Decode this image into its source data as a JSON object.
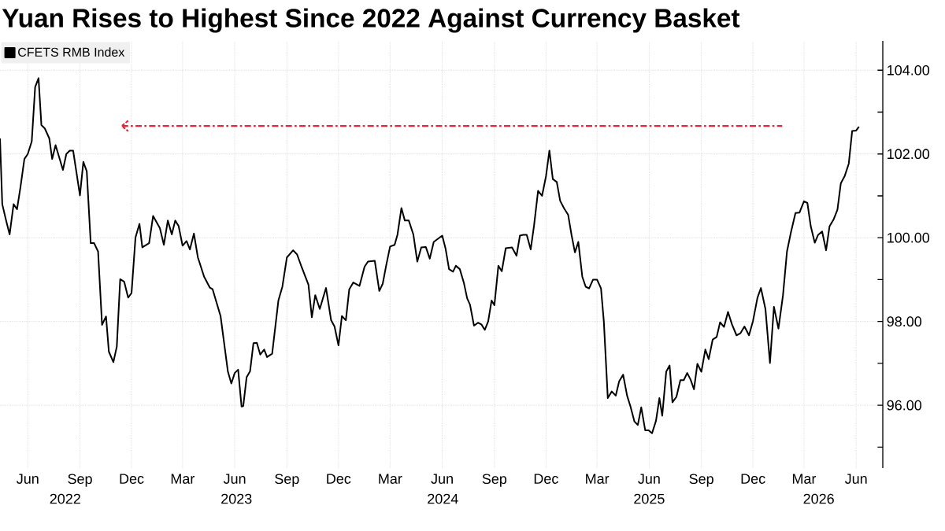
{
  "chart_data": {
    "type": "line",
    "title": "Yuan Rises to Highest Since 2022 Against Currency Basket",
    "x": [
      "2022-04-13",
      "2022-04-17",
      "2022-04-24",
      "2022-04-30",
      "2022-05-07",
      "2022-05-13",
      "2022-05-19",
      "2022-05-26",
      "2022-06-01",
      "2022-06-08",
      "2022-06-14",
      "2022-06-20",
      "2022-06-25",
      "2022-07-01",
      "2022-07-09",
      "2022-07-14",
      "2022-07-20",
      "2022-08-02",
      "2022-08-08",
      "2022-08-14",
      "2022-08-20",
      "2022-09-01",
      "2022-09-07",
      "2022-09-13",
      "2022-09-20",
      "2022-09-26",
      "2022-10-03",
      "2022-10-10",
      "2022-10-17",
      "2022-10-22",
      "2022-10-30",
      "2022-11-05",
      "2022-11-11",
      "2022-11-18",
      "2022-11-25",
      "2022-12-01",
      "2022-12-08",
      "2022-12-15",
      "2022-12-20",
      "2023-01-01",
      "2023-01-08",
      "2023-01-20",
      "2023-01-27",
      "2023-02-03",
      "2023-02-10",
      "2023-02-16",
      "2023-02-22",
      "2023-03-01",
      "2023-03-08",
      "2023-03-14",
      "2023-03-21",
      "2023-03-28",
      "2023-04-08",
      "2023-04-18",
      "2023-04-23",
      "2023-05-07",
      "2023-05-20",
      "2023-05-26",
      "2023-06-01",
      "2023-06-07",
      "2023-06-13",
      "2023-06-16",
      "2023-06-22",
      "2023-06-28",
      "2023-07-04",
      "2023-07-10",
      "2023-07-16",
      "2023-07-23",
      "2023-07-28",
      "2023-08-06",
      "2023-08-17",
      "2023-08-24",
      "2023-09-01",
      "2023-09-12",
      "2023-09-19",
      "2023-09-27",
      "2023-10-09",
      "2023-10-15",
      "2023-10-21",
      "2023-10-29",
      "2023-11-09",
      "2023-11-18",
      "2023-11-24",
      "2023-12-01",
      "2023-12-07",
      "2023-12-14",
      "2023-12-20",
      "2023-12-27",
      "2024-01-07",
      "2024-01-16",
      "2024-01-22",
      "2024-02-03",
      "2024-02-11",
      "2024-02-17",
      "2024-02-23",
      "2024-03-01",
      "2024-03-09",
      "2024-03-14",
      "2024-03-21",
      "2024-03-27",
      "2024-04-03",
      "2024-04-11",
      "2024-04-18",
      "2024-04-25",
      "2024-05-03",
      "2024-05-10",
      "2024-05-17",
      "2024-06-01",
      "2024-06-07",
      "2024-06-13",
      "2024-06-20",
      "2024-06-25",
      "2024-07-02",
      "2024-07-09",
      "2024-07-15",
      "2024-07-20",
      "2024-07-27",
      "2024-08-03",
      "2024-08-09",
      "2024-08-15",
      "2024-08-21",
      "2024-08-27",
      "2024-09-01",
      "2024-09-08",
      "2024-09-14",
      "2024-09-21",
      "2024-10-02",
      "2024-10-10",
      "2024-10-16",
      "2024-10-22",
      "2024-10-28",
      "2024-11-04",
      "2024-11-10",
      "2024-11-17",
      "2024-11-24",
      "2024-12-01",
      "2024-12-07",
      "2024-12-13",
      "2024-12-20",
      "2024-12-26",
      "2025-01-02",
      "2025-01-09",
      "2025-01-15",
      "2025-01-21",
      "2025-01-27",
      "2025-02-03",
      "2025-02-09",
      "2025-02-15",
      "2025-02-22",
      "2025-03-01",
      "2025-03-08",
      "2025-03-13",
      "2025-03-20",
      "2025-03-27",
      "2025-04-03",
      "2025-04-09",
      "2025-04-16",
      "2025-04-23",
      "2025-04-29",
      "2025-05-06",
      "2025-05-12",
      "2025-05-18",
      "2025-05-25",
      "2025-05-31",
      "2025-06-06",
      "2025-06-13",
      "2025-06-19",
      "2025-06-24",
      "2025-07-01",
      "2025-07-07",
      "2025-07-12",
      "2025-07-19",
      "2025-07-26",
      "2025-08-01",
      "2025-08-07",
      "2025-08-13",
      "2025-08-19",
      "2025-08-25",
      "2025-09-01",
      "2025-09-08",
      "2025-09-14",
      "2025-09-21",
      "2025-09-28",
      "2025-10-04",
      "2025-10-11",
      "2025-10-18",
      "2025-10-25",
      "2025-11-02",
      "2025-11-09",
      "2025-11-16",
      "2025-11-24",
      "2025-12-01",
      "2025-12-09",
      "2025-12-15",
      "2025-12-23",
      "2025-12-31",
      "2026-01-07",
      "2026-01-15",
      "2026-01-23",
      "2026-01-30",
      "2026-02-06",
      "2026-02-14",
      "2026-02-21",
      "2026-03-01",
      "2026-03-07",
      "2026-03-13",
      "2026-03-20",
      "2026-03-26",
      "2026-04-02",
      "2026-04-09",
      "2026-04-15",
      "2026-04-22",
      "2026-04-29",
      "2026-05-05",
      "2026-05-12",
      "2026-05-19",
      "2026-05-25",
      "2026-06-01",
      "2026-06-06"
    ],
    "series": [
      {
        "name": "CFETS RMB Index",
        "color": "#000000",
        "values": [
          102.37,
          100.8,
          100.4,
          100.08,
          100.8,
          100.68,
          101.2,
          101.88,
          102.0,
          102.3,
          103.6,
          103.81,
          102.69,
          102.61,
          102.37,
          101.88,
          102.21,
          101.62,
          102.0,
          102.08,
          102.08,
          101.01,
          101.81,
          101.59,
          99.87,
          99.87,
          99.67,
          97.92,
          98.12,
          97.28,
          97.03,
          97.4,
          99.01,
          98.95,
          98.57,
          98.68,
          100.01,
          100.33,
          99.77,
          99.87,
          100.52,
          100.23,
          99.83,
          100.41,
          100.08,
          100.41,
          100.28,
          99.81,
          99.92,
          99.72,
          100.1,
          99.53,
          99.07,
          98.81,
          98.77,
          98.13,
          96.8,
          96.52,
          96.77,
          96.85,
          95.97,
          95.98,
          96.67,
          96.81,
          97.48,
          97.49,
          97.21,
          97.33,
          97.15,
          97.23,
          98.5,
          98.83,
          99.53,
          99.7,
          99.6,
          99.3,
          98.88,
          98.1,
          98.63,
          98.3,
          98.8,
          98.03,
          97.88,
          97.43,
          98.13,
          98.03,
          98.77,
          98.93,
          98.85,
          99.31,
          99.43,
          99.45,
          98.73,
          98.9,
          99.33,
          99.79,
          99.83,
          100.07,
          100.71,
          100.41,
          100.41,
          100.08,
          99.43,
          99.77,
          99.78,
          99.5,
          99.9,
          100.05,
          99.73,
          99.25,
          99.19,
          99.33,
          99.25,
          98.93,
          98.55,
          98.4,
          97.9,
          97.97,
          97.93,
          97.8,
          98.0,
          98.5,
          98.39,
          99.33,
          99.2,
          99.75,
          99.77,
          99.57,
          100.05,
          100.07,
          100.07,
          99.72,
          100.3,
          101.12,
          101.0,
          101.47,
          102.08,
          101.4,
          101.33,
          100.88,
          100.7,
          100.55,
          100.07,
          99.65,
          99.9,
          99.07,
          98.83,
          98.79,
          99.0,
          99.0,
          98.79,
          98.0,
          96.17,
          96.33,
          96.23,
          96.57,
          96.73,
          96.23,
          95.97,
          95.61,
          95.53,
          95.95,
          95.4,
          95.4,
          95.33,
          95.63,
          96.17,
          95.75,
          96.8,
          96.95,
          96.07,
          96.2,
          96.6,
          96.6,
          96.77,
          96.61,
          96.38,
          96.99,
          96.8,
          97.33,
          97.1,
          97.57,
          97.63,
          97.98,
          97.87,
          98.23,
          97.93,
          97.67,
          97.72,
          97.88,
          97.67,
          98.01,
          98.57,
          98.8,
          98.3,
          97.01,
          98.35,
          97.83,
          98.63,
          99.67,
          100.13,
          100.59,
          100.6,
          100.87,
          100.83,
          100.27,
          99.88,
          100.07,
          100.15,
          99.7,
          100.27,
          100.43,
          100.67,
          101.3,
          101.48,
          101.77,
          102.55,
          102.56,
          102.65
        ]
      }
    ],
    "xlim": [
      "2022-04-13",
      "2026-07-18"
    ],
    "xticks": [
      {
        "value": "2022-06-01",
        "label": "Jun"
      },
      {
        "value": "2022-09-01",
        "label": "Sep"
      },
      {
        "value": "2022-12-01",
        "label": "Dec"
      },
      {
        "value": "2023-03-01",
        "label": "Mar"
      },
      {
        "value": "2023-06-01",
        "label": "Jun"
      },
      {
        "value": "2023-09-01",
        "label": "Sep"
      },
      {
        "value": "2023-12-01",
        "label": "Dec"
      },
      {
        "value": "2024-03-01",
        "label": "Mar"
      },
      {
        "value": "2024-06-01",
        "label": "Jun"
      },
      {
        "value": "2024-09-01",
        "label": "Sep"
      },
      {
        "value": "2024-12-01",
        "label": "Dec"
      },
      {
        "value": "2025-03-01",
        "label": "Mar"
      },
      {
        "value": "2025-06-01",
        "label": "Jun"
      },
      {
        "value": "2025-09-01",
        "label": "Sep"
      },
      {
        "value": "2025-12-01",
        "label": "Dec"
      },
      {
        "value": "2026-03-01",
        "label": "Mar"
      },
      {
        "value": "2026-06-01",
        "label": "Jun"
      }
    ],
    "x2lim": [
      "2022-04-13",
      "2026-07-18"
    ],
    "x2ticks": [
      {
        "value": "2022-08-06",
        "label": "2022"
      },
      {
        "value": "2023-06-04",
        "label": "2023"
      },
      {
        "value": "2024-06-02",
        "label": "2024"
      },
      {
        "value": "2025-06-01",
        "label": "2025"
      },
      {
        "value": "2026-03-27",
        "label": "2026"
      }
    ],
    "ylim": [
      94.5,
      104.7
    ],
    "yticks": [
      {
        "value": 95,
        "label": null
      },
      {
        "value": 96,
        "label": "96.00"
      },
      {
        "value": 97,
        "label": null
      },
      {
        "value": 98,
        "label": "98.00"
      },
      {
        "value": 99,
        "label": null
      },
      {
        "value": 100,
        "label": "100.00"
      },
      {
        "value": 101,
        "label": null
      },
      {
        "value": 102,
        "label": "102.00"
      },
      {
        "value": 103,
        "label": null
      },
      {
        "value": 104,
        "label": "104.00"
      }
    ],
    "ref_lines": [
      {
        "axis": "y",
        "value": 102.67,
        "color": "#e8253c",
        "line_style": "dashdot"
      }
    ],
    "grid": true,
    "legend": "top left"
  }
}
